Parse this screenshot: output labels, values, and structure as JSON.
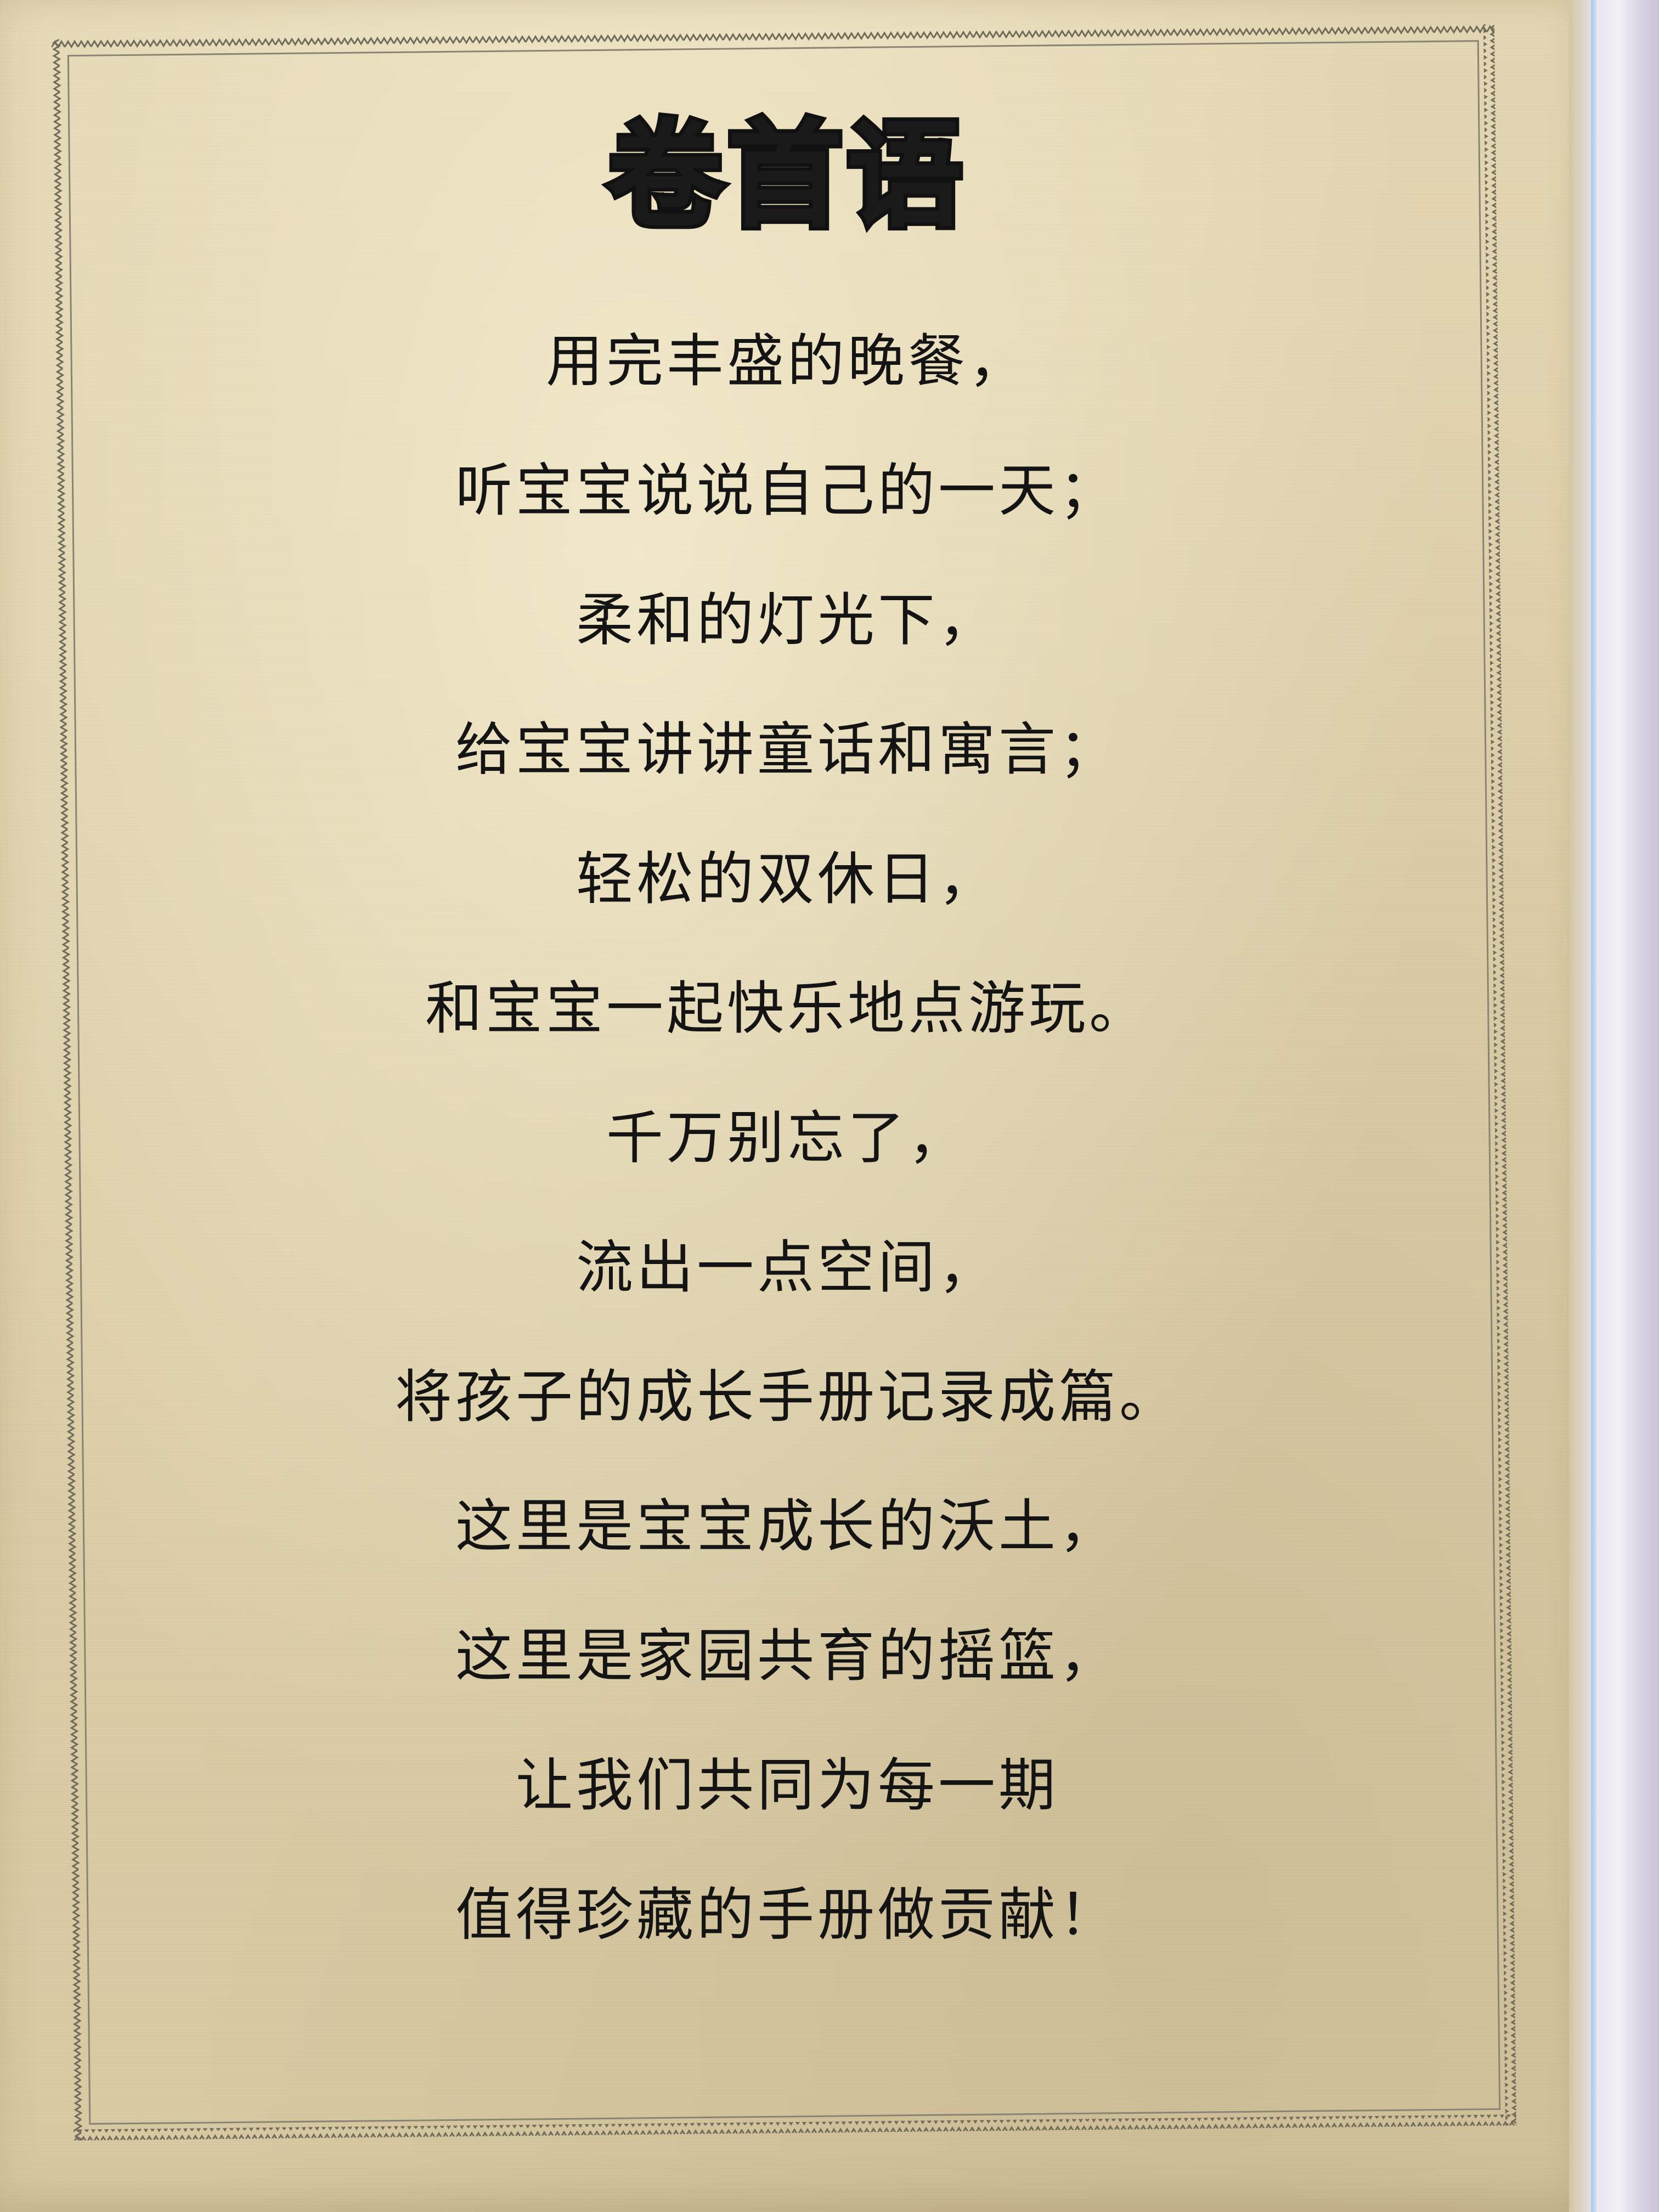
{
  "document": {
    "title": "卷首语",
    "lines": [
      "用完丰盛的晚餐，",
      "听宝宝说说自己的一天；",
      "柔和的灯光下，",
      "给宝宝讲讲童话和寓言；",
      "轻松的双休日，",
      "和宝宝一起快乐地点游玩。",
      "千万别忘了，",
      "流出一点空间，",
      "将孩子的成长手册记录成篇。",
      "这里是宝宝成长的沃土，",
      "这里是家园共育的摇篮，",
      "让我们共同为每一期",
      "值得珍藏的手册做贡献！"
    ]
  }
}
